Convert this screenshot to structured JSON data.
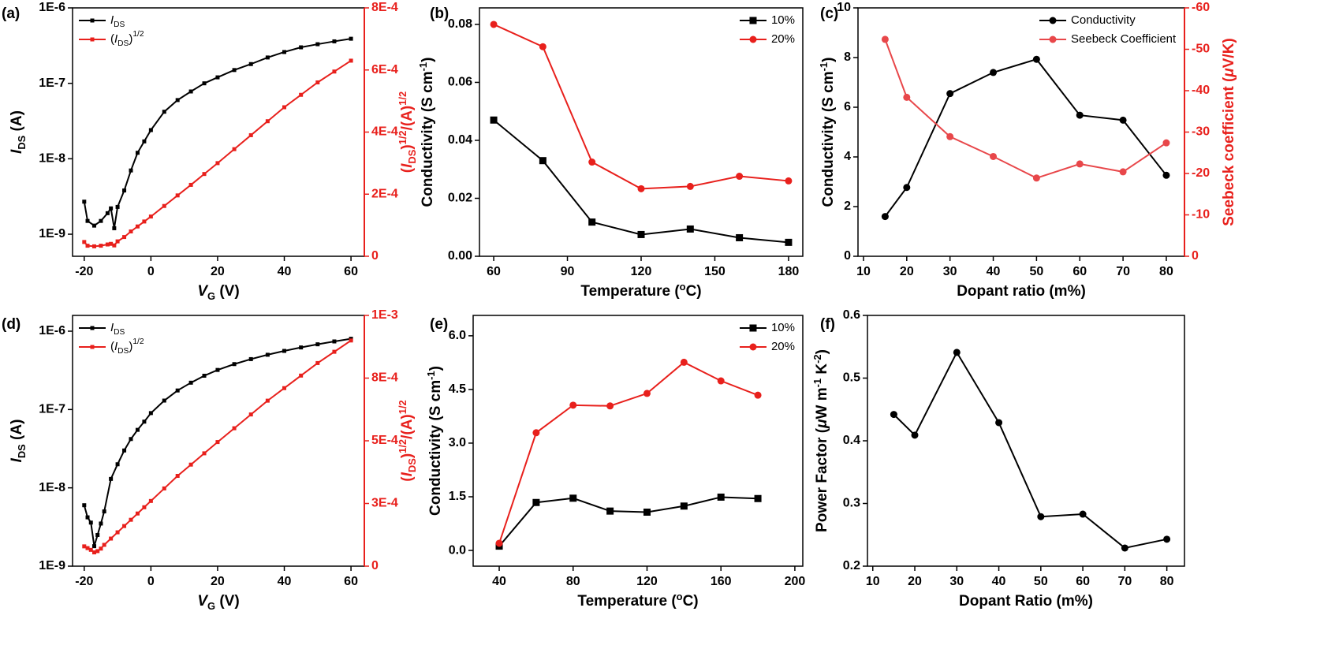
{
  "chart_data": [
    {
      "type": "line",
      "title": "(a)",
      "ylog": true,
      "legend": "upper left",
      "marker_size": 5,
      "xlim": [
        -23.5,
        64
      ],
      "xticks": [
        -20,
        0,
        20,
        40,
        60
      ],
      "ylim": [
        5.1e-10,
        1e-06
      ],
      "yticks": [
        {
          "value": 1e-09,
          "label": "1E-9"
        },
        {
          "value": 1e-08,
          "label": "1E-8"
        },
        {
          "value": 1e-07,
          "label": "1E-7"
        },
        {
          "value": 1e-06,
          "label": "1E-6"
        }
      ],
      "y2lim": [
        0,
        0.0008
      ],
      "y2ticks": [
        0,
        {
          "value": 0.0002,
          "label": "2E-4"
        },
        {
          "value": 0.0004,
          "label": "4E-4"
        },
        {
          "value": 0.0006,
          "label": "6E-4"
        },
        {
          "value": 0.0008,
          "label": "8E-4"
        }
      ],
      "y2color": "#e8201c",
      "xlabel": [
        {
          "text": "V",
          "italic": true
        },
        {
          "text": "G",
          "sub": true
        },
        {
          "text": " (V)"
        }
      ],
      "ylabel": [
        {
          "text": "I",
          "italic": true
        },
        {
          "text": "DS",
          "sub": true
        },
        {
          "text": " (A)"
        }
      ],
      "y2label": [
        {
          "text": "("
        },
        {
          "text": "I",
          "italic": true
        },
        {
          "text": "DS",
          "sub": true
        },
        {
          "text": ")"
        },
        {
          "text": "1/2",
          "sup": true
        },
        {
          "text": "/(A)"
        },
        {
          "text": "1/2",
          "sup": true
        }
      ],
      "x": [
        -20,
        -19,
        -17,
        -15,
        -13,
        -12,
        -11,
        -10,
        -8,
        -6,
        -4,
        -2,
        0,
        4,
        8,
        12,
        16,
        20,
        25,
        30,
        35,
        40,
        45,
        50,
        55,
        60
      ],
      "series": [
        {
          "name": [
            {
              "text": "I",
              "italic": true
            },
            {
              "text": "DS",
              "sub": true
            }
          ],
          "color": "#000000",
          "marker": "square",
          "values": [
            2.7e-09,
            1.5e-09,
            1.3e-09,
            1.5e-09,
            1.9e-09,
            2.2e-09,
            1.2e-09,
            2.3e-09,
            3.8e-09,
            7e-09,
            1.2e-08,
            1.7e-08,
            2.4e-08,
            4.2e-08,
            6e-08,
            7.8e-08,
            1e-07,
            1.2e-07,
            1.5e-07,
            1.8e-07,
            2.2e-07,
            2.6e-07,
            3e-07,
            3.3e-07,
            3.6e-07,
            3.9e-07
          ]
        },
        {
          "name": [
            {
              "text": "("
            },
            {
              "text": "I",
              "italic": true
            },
            {
              "text": "DS",
              "sub": true
            },
            {
              "text": ")"
            },
            {
              "text": "1/2",
              "sup": true
            }
          ],
          "color": "#e8201c",
          "marker": "square",
          "axis": "y2",
          "values": [
            4.6e-05,
            3.4e-05,
            3.2e-05,
            3.4e-05,
            3.8e-05,
            4e-05,
            3.5e-05,
            4.8e-05,
            6.2e-05,
            8e-05,
            9.6e-05,
            0.000112,
            0.000128,
            0.000162,
            0.000196,
            0.00023,
            0.000265,
            0.0003,
            0.000345,
            0.00039,
            0.000435,
            0.00048,
            0.00052,
            0.00056,
            0.000595,
            0.00063
          ]
        }
      ]
    },
    {
      "type": "line",
      "title": "(b)",
      "legend": "upper right",
      "marker_size": 9,
      "xlim": [
        54.2,
        185.8
      ],
      "xticks": [
        60,
        90,
        120,
        150,
        180
      ],
      "ylim": [
        0,
        0.0857
      ],
      "yticks": [
        {
          "value": 0,
          "label": "0.00"
        },
        0.02,
        0.04,
        0.06,
        0.08
      ],
      "xlabel": [
        {
          "text": "Temperature ("
        },
        {
          "text": "o",
          "sup": true
        },
        {
          "text": "C)"
        }
      ],
      "ylabel": [
        {
          "text": "Conductivity (S cm"
        },
        {
          "text": "-1",
          "sup": true
        },
        {
          "text": ")"
        }
      ],
      "x": [
        60,
        80,
        100,
        120,
        140,
        160,
        180
      ],
      "series": [
        {
          "name": "10%",
          "color": "#000000",
          "marker": "square",
          "values": [
            0.047,
            0.033,
            0.0118,
            0.0075,
            0.0094,
            0.0064,
            0.0048
          ]
        },
        {
          "name": "20%",
          "color": "#e8201c",
          "marker": "circle",
          "values": [
            0.08,
            0.0723,
            0.0325,
            0.0233,
            0.0241,
            0.0276,
            0.026
          ]
        }
      ]
    },
    {
      "type": "line",
      "title": "(c)",
      "legend": "upper right",
      "marker_size": 9,
      "xlim": [
        8.73,
        84.2
      ],
      "xticks": [
        10,
        20,
        30,
        40,
        50,
        60,
        70,
        80
      ],
      "ylim": [
        0,
        10
      ],
      "yticks": [
        0,
        2,
        4,
        6,
        8,
        10
      ],
      "y2lim": [
        0,
        -60
      ],
      "y2ticks": [
        0,
        -10,
        -20,
        -30,
        -40,
        -50,
        -60
      ],
      "y2color": "#e8201c",
      "xlabel": "Dopant ratio (m%)",
      "ylabel": [
        {
          "text": "Conductivity  (S cm"
        },
        {
          "text": "-1",
          "sup": true
        },
        {
          "text": ")"
        }
      ],
      "y2label": [
        {
          "text": "Seebeck coefficient ("
        },
        {
          "text": "μ",
          "italic": true
        },
        {
          "text": "V/K)"
        }
      ],
      "x": [
        15,
        20,
        30,
        40,
        50,
        60,
        70,
        80
      ],
      "series": [
        {
          "name": "Conductivity",
          "color": "#000000",
          "marker": "circle",
          "values": [
            1.6,
            2.77,
            6.55,
            7.4,
            7.93,
            5.68,
            5.48,
            3.26
          ]
        },
        {
          "name": "Seebeck Coefficient",
          "color": "#e8474a",
          "marker": "circle",
          "axis": "y2",
          "values": [
            -52.4,
            -38.4,
            -28.9,
            -24.1,
            -18.9,
            -22.3,
            -20.4,
            -27.4
          ]
        }
      ]
    },
    {
      "type": "line",
      "title": "(d)",
      "ylog": true,
      "legend": "upper left",
      "marker_size": 5,
      "xlim": [
        -23.5,
        64
      ],
      "xticks": [
        -20,
        0,
        20,
        40,
        60
      ],
      "ylim": [
        1e-09,
        1.59e-06
      ],
      "yticks": [
        {
          "value": 1e-09,
          "label": "1E-9"
        },
        {
          "value": 1e-08,
          "label": "1E-8"
        },
        {
          "value": 1e-07,
          "label": "1E-7"
        },
        {
          "value": 1e-06,
          "label": "1E-6"
        }
      ],
      "y2lim": [
        0,
        0.001
      ],
      "y2ticks": [
        0,
        {
          "value": 0.00025,
          "label": "3E-4"
        },
        {
          "value": 0.0005,
          "label": "5E-4"
        },
        {
          "value": 0.00075,
          "label": "8E-4"
        },
        {
          "value": 0.001,
          "label": "1E-3"
        }
      ],
      "y2color": "#e8201c",
      "xlabel": [
        {
          "text": "V",
          "italic": true
        },
        {
          "text": "G",
          "sub": true
        },
        {
          "text": " (V)"
        }
      ],
      "ylabel": [
        {
          "text": "I",
          "italic": true
        },
        {
          "text": "DS",
          "sub": true
        },
        {
          "text": " (A)"
        }
      ],
      "y2label": [
        {
          "text": "("
        },
        {
          "text": "I",
          "italic": true
        },
        {
          "text": "DS",
          "sub": true
        },
        {
          "text": ")"
        },
        {
          "text": "1/2",
          "sup": true
        },
        {
          "text": "/(A)"
        },
        {
          "text": "1/2",
          "sup": true
        }
      ],
      "x": [
        -20,
        -19,
        -18,
        -17,
        -16,
        -15,
        -14,
        -12,
        -10,
        -8,
        -6,
        -4,
        -2,
        0,
        4,
        8,
        12,
        16,
        20,
        25,
        30,
        35,
        40,
        45,
        50,
        55,
        60
      ],
      "series": [
        {
          "name": [
            {
              "text": "I",
              "italic": true
            },
            {
              "text": "DS",
              "sub": true
            }
          ],
          "color": "#000000",
          "marker": "square",
          "values": [
            6e-09,
            4.2e-09,
            3.6e-09,
            1.8e-09,
            2.5e-09,
            3.5e-09,
            5e-09,
            1.3e-08,
            2e-08,
            3e-08,
            4.2e-08,
            5.5e-08,
            7e-08,
            9e-08,
            1.3e-07,
            1.75e-07,
            2.2e-07,
            2.7e-07,
            3.2e-07,
            3.8e-07,
            4.4e-07,
            5e-07,
            5.6e-07,
            6.2e-07,
            6.8e-07,
            7.4e-07,
            8e-07
          ]
        },
        {
          "name": [
            {
              "text": "("
            },
            {
              "text": "I",
              "italic": true
            },
            {
              "text": "DS",
              "sub": true
            },
            {
              "text": ")"
            },
            {
              "text": "1/2",
              "sup": true
            }
          ],
          "color": "#e8201c",
          "marker": "square",
          "axis": "y2",
          "values": [
            7.9e-05,
            7.2e-05,
            6.5e-05,
            5.5e-05,
            6e-05,
            7e-05,
            8.5e-05,
            0.00011,
            0.000135,
            0.00016,
            0.000185,
            0.00021,
            0.000235,
            0.00026,
            0.00031,
            0.00036,
            0.000405,
            0.00045,
            0.000495,
            0.00055,
            0.000605,
            0.00066,
            0.00071,
            0.00076,
            0.00081,
            0.000855,
            0.0009
          ]
        }
      ]
    },
    {
      "type": "line",
      "title": "(e)",
      "legend": "upper right",
      "marker_size": 9,
      "xlim": [
        25.9,
        204.3
      ],
      "xticks": [
        40,
        80,
        120,
        160,
        200
      ],
      "ylim": [
        -0.44,
        6.57
      ],
      "yticks": [
        {
          "value": 0,
          "label": "0.0"
        },
        1.5,
        {
          "value": 3,
          "label": "3.0"
        },
        4.5,
        {
          "value": 6,
          "label": "6.0"
        }
      ],
      "xlabel": [
        {
          "text": "Temperature ("
        },
        {
          "text": "o",
          "sup": true
        },
        {
          "text": "C)"
        }
      ],
      "ylabel": [
        {
          "text": "Conductivity (S cm"
        },
        {
          "text": "-1",
          "sup": true
        },
        {
          "text": ")"
        }
      ],
      "x": [
        40,
        60,
        80,
        100,
        120,
        140,
        160,
        180
      ],
      "series": [
        {
          "name": "10%",
          "color": "#000000",
          "marker": "square",
          "values": [
            0.12,
            1.34,
            1.46,
            1.1,
            1.07,
            1.24,
            1.49,
            1.45
          ]
        },
        {
          "name": "20%",
          "color": "#e8201c",
          "marker": "circle",
          "values": [
            0.2,
            3.29,
            4.06,
            4.04,
            4.39,
            5.26,
            4.74,
            4.34
          ]
        }
      ]
    },
    {
      "type": "line",
      "title": "(f)",
      "marker_size": 9,
      "xlim": [
        8.73,
        84.2
      ],
      "xticks": [
        10,
        20,
        30,
        40,
        50,
        60,
        70,
        80
      ],
      "ylim": [
        0.2,
        0.6
      ],
      "yticks": [
        0.2,
        0.3,
        0.4,
        0.5,
        0.6
      ],
      "xlabel": "Dopant Ratio (m%)",
      "ylabel": [
        {
          "text": "Power Factor ("
        },
        {
          "text": "μ",
          "italic": true
        },
        {
          "text": "W m"
        },
        {
          "text": "-1",
          "sup": true
        },
        {
          "text": " K"
        },
        {
          "text": "-2",
          "sup": true
        },
        {
          "text": ")"
        }
      ],
      "x": [
        15,
        20,
        30,
        40,
        50,
        60,
        70,
        80
      ],
      "series": [
        {
          "color": "#000000",
          "marker": "circle",
          "values": [
            0.442,
            0.409,
            0.541,
            0.429,
            0.279,
            0.283,
            0.229,
            0.243
          ]
        }
      ]
    }
  ]
}
